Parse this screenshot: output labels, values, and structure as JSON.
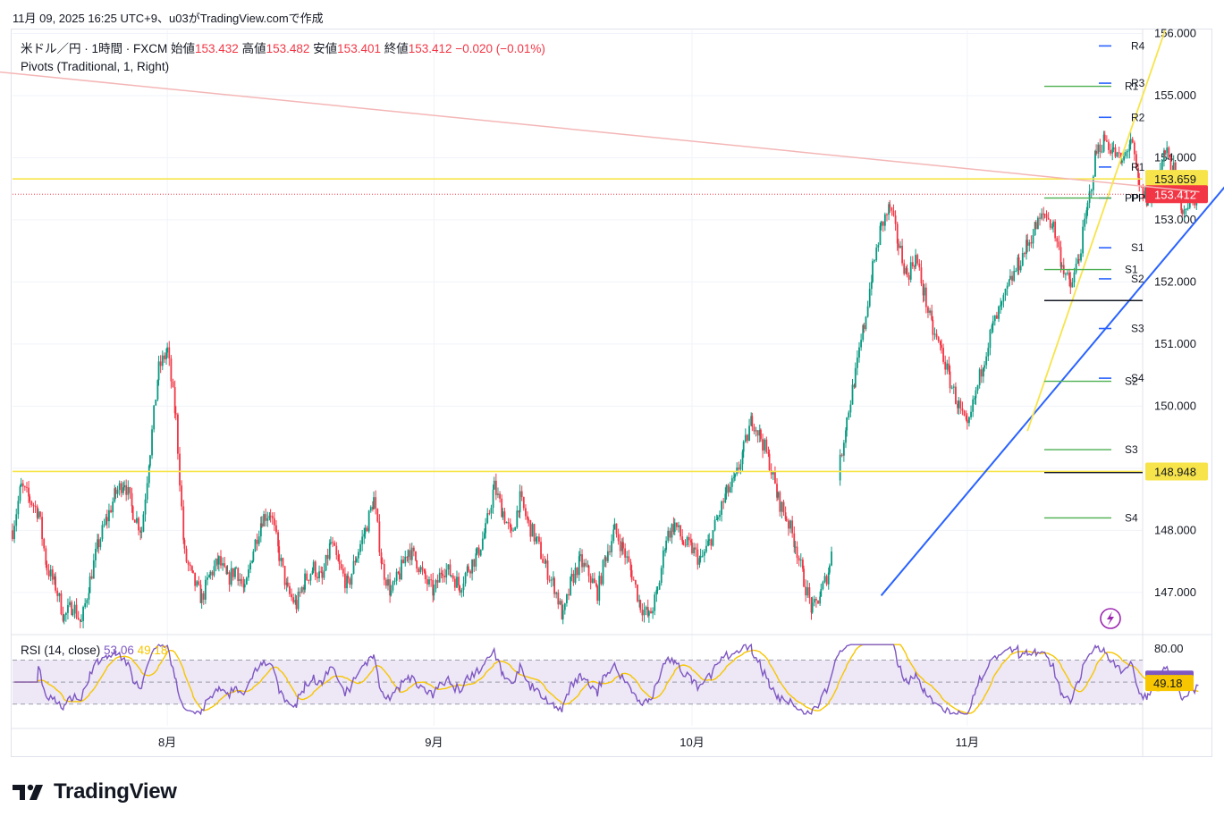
{
  "header": {
    "snapshot_line": "11月 09, 2025 16:25 UTC+9、u03がTradingView.comで作成"
  },
  "legend": {
    "symbol": "米ドル／円 · 1時間 · FXCM",
    "open_label": "始値",
    "open": "153.432",
    "high_label": "高値",
    "high": "153.482",
    "low_label": "安値",
    "low": "153.401",
    "close_label": "終値",
    "close": "153.412",
    "change": "−0.020 (−0.01%)",
    "indicator": "Pivots (Traditional, 1, Right)"
  },
  "rsi_legend": {
    "name": "RSI (14, close)",
    "value": "53.06",
    "ma_value": "49.18"
  },
  "brand": {
    "name": "TradingView"
  },
  "colors": {
    "up": "#089981",
    "down": "#f23645",
    "yellow": "#f7e44a",
    "blue": "#2962ff",
    "pink_line": "#f4b6b6",
    "green_pivot": "#4caf50",
    "rsi": "#7e57c2",
    "rsi_ma": "#f7c600",
    "rsi_band": "#ede7f6"
  },
  "chart_data": {
    "type": "candlestick",
    "instrument": "米ドル／円",
    "timeframe": "1時間",
    "y_axis": {
      "range": [
        146.35,
        156.05
      ],
      "ticks": [
        "156.000",
        "155.000",
        "154.000",
        "153.000",
        "152.000",
        "151.000",
        "150.000",
        "149.000",
        "148.000",
        "147.000"
      ]
    },
    "x_axis": {
      "labels": [
        {
          "label": "8月",
          "day": 18
        },
        {
          "label": "9月",
          "day": 49
        },
        {
          "label": "10月",
          "day": 79
        },
        {
          "label": "11月",
          "day": 111
        }
      ],
      "range_days": [
        0,
        126
      ]
    },
    "price_path": [
      [
        0,
        148.0
      ],
      [
        1,
        148.7
      ],
      [
        2,
        148.5
      ],
      [
        3,
        148.3
      ],
      [
        4,
        147.4
      ],
      [
        5,
        147.1
      ],
      [
        6,
        146.6
      ],
      [
        7,
        146.8
      ],
      [
        8,
        146.5
      ],
      [
        9,
        147.2
      ],
      [
        10,
        147.8
      ],
      [
        11,
        148.2
      ],
      [
        12,
        148.6
      ],
      [
        13,
        148.8
      ],
      [
        14,
        148.3
      ],
      [
        15,
        148.0
      ],
      [
        16,
        149.3
      ],
      [
        17,
        150.6
      ],
      [
        18,
        150.9
      ],
      [
        19,
        149.8
      ],
      [
        20,
        147.6
      ],
      [
        21,
        147.2
      ],
      [
        22,
        146.9
      ],
      [
        23,
        147.3
      ],
      [
        24,
        147.5
      ],
      [
        25,
        147.2
      ],
      [
        26,
        147.4
      ],
      [
        27,
        147.0
      ],
      [
        28,
        147.7
      ],
      [
        29,
        148.2
      ],
      [
        30,
        148.3
      ],
      [
        31,
        147.6
      ],
      [
        32,
        147.0
      ],
      [
        33,
        146.8
      ],
      [
        34,
        147.2
      ],
      [
        35,
        147.4
      ],
      [
        36,
        147.2
      ],
      [
        37,
        147.8
      ],
      [
        38,
        147.4
      ],
      [
        39,
        147.1
      ],
      [
        40,
        147.6
      ],
      [
        41,
        148.0
      ],
      [
        42,
        148.5
      ],
      [
        43,
        147.4
      ],
      [
        44,
        147.0
      ],
      [
        45,
        147.3
      ],
      [
        46,
        147.7
      ],
      [
        47,
        147.5
      ],
      [
        48,
        147.2
      ],
      [
        49,
        147.0
      ],
      [
        50,
        147.4
      ],
      [
        51,
        147.3
      ],
      [
        52,
        147.1
      ],
      [
        53,
        147.4
      ],
      [
        54,
        147.6
      ],
      [
        55,
        148.0
      ],
      [
        56,
        148.7
      ],
      [
        57,
        148.3
      ],
      [
        58,
        147.9
      ],
      [
        59,
        148.5
      ],
      [
        60,
        148.1
      ],
      [
        61,
        147.8
      ],
      [
        62,
        147.4
      ],
      [
        63,
        147.1
      ],
      [
        64,
        146.6
      ],
      [
        65,
        147.2
      ],
      [
        66,
        147.5
      ],
      [
        67,
        147.3
      ],
      [
        68,
        147.0
      ],
      [
        69,
        147.6
      ],
      [
        70,
        148.0
      ],
      [
        71,
        147.7
      ],
      [
        72,
        147.3
      ],
      [
        73,
        146.8
      ],
      [
        74,
        146.6
      ],
      [
        75,
        147.0
      ],
      [
        76,
        147.9
      ],
      [
        77,
        148.1
      ],
      [
        78,
        147.8
      ],
      [
        79,
        147.7
      ],
      [
        80,
        147.5
      ],
      [
        81,
        147.8
      ],
      [
        82,
        148.2
      ],
      [
        83,
        148.6
      ],
      [
        84,
        148.8
      ],
      [
        85,
        149.3
      ],
      [
        86,
        149.8
      ],
      [
        87,
        149.5
      ],
      [
        88,
        149.1
      ],
      [
        89,
        148.5
      ],
      [
        90,
        148.2
      ],
      [
        91,
        147.8
      ],
      [
        92,
        147.2
      ],
      [
        93,
        146.7
      ],
      [
        94,
        147.0
      ],
      [
        95,
        147.4
      ],
      [
        96,
        148.9
      ],
      [
        97,
        149.8
      ],
      [
        98,
        150.5
      ],
      [
        99,
        151.3
      ],
      [
        100,
        152.2
      ],
      [
        101,
        152.9
      ],
      [
        102,
        153.2
      ],
      [
        103,
        152.6
      ],
      [
        104,
        152.1
      ],
      [
        105,
        152.4
      ],
      [
        106,
        151.8
      ],
      [
        107,
        151.2
      ],
      [
        108,
        150.9
      ],
      [
        109,
        150.4
      ],
      [
        110,
        150.0
      ],
      [
        111,
        149.6
      ],
      [
        112,
        150.2
      ],
      [
        113,
        150.8
      ],
      [
        114,
        151.3
      ],
      [
        115,
        151.6
      ],
      [
        116,
        152.0
      ],
      [
        117,
        152.3
      ],
      [
        118,
        152.6
      ],
      [
        119,
        152.9
      ],
      [
        120,
        153.1
      ],
      [
        121,
        152.9
      ],
      [
        122,
        152.3
      ],
      [
        123,
        151.9
      ],
      [
        124,
        152.4
      ],
      [
        125,
        153.2
      ],
      [
        126,
        154.1
      ],
      [
        127,
        154.3
      ],
      [
        128,
        154.1
      ],
      [
        129,
        153.9
      ],
      [
        130,
        154.3
      ],
      [
        131,
        153.5
      ],
      [
        132,
        153.3
      ],
      [
        133,
        153.6
      ],
      [
        134,
        154.1
      ],
      [
        135,
        153.8
      ],
      [
        136,
        153.2
      ],
      [
        137,
        153.3
      ],
      [
        138,
        153.41
      ]
    ],
    "last_price": 153.412,
    "horizontal_lines": [
      {
        "price": 153.659,
        "label": "153.659",
        "color": "yellow"
      },
      {
        "price": 148.948,
        "label": "148.948",
        "color": "yellow"
      }
    ],
    "pivots": {
      "current": [
        {
          "label": "R4",
          "price": 155.8
        },
        {
          "label": "R3",
          "price": 155.2
        },
        {
          "label": "R2",
          "price": 154.65
        },
        {
          "label": "R1",
          "price": 153.85
        },
        {
          "label": "PP",
          "price": 153.35
        },
        {
          "label": "S1",
          "price": 152.55
        },
        {
          "label": "S2",
          "price": 152.05
        },
        {
          "label": "S3",
          "price": 151.25
        },
        {
          "label": "S4",
          "price": 150.45
        }
      ],
      "previous": [
        {
          "label": "R1",
          "price": 155.15
        },
        {
          "label": "PP",
          "price": 153.35
        },
        {
          "label": "S1",
          "price": 152.2
        },
        {
          "label": "S2",
          "price": 150.4
        },
        {
          "label": "S3",
          "price": 149.3
        },
        {
          "label": "S4",
          "price": 148.2
        }
      ],
      "black_lines": [
        151.7,
        148.93
      ]
    },
    "trendlines": [
      {
        "name": "pink",
        "from": [
          -3,
          155.4
        ],
        "to": [
          138,
          153.45
        ]
      },
      {
        "name": "blue",
        "from": [
          101,
          146.95
        ],
        "to": [
          145,
          154.2
        ]
      },
      {
        "name": "yellow",
        "from": [
          118,
          149.6
        ],
        "to": [
          134,
          156.05
        ]
      }
    ],
    "rsi": {
      "range": [
        20,
        85
      ],
      "ticks": [
        "80.00"
      ],
      "upper_band": 70,
      "lower_band": 30,
      "last": 53.06,
      "ma_last": 49.18
    }
  }
}
